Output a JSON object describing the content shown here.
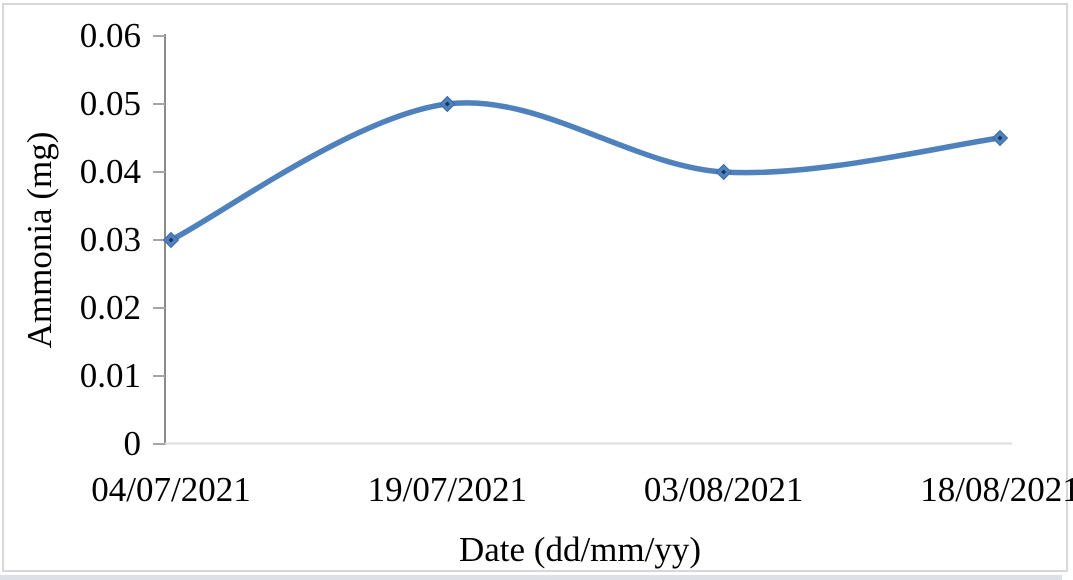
{
  "figure": {
    "background": "#ffffff",
    "border_color": "#d7d7d7"
  },
  "chart_data": {
    "type": "line",
    "categories": [
      "04/07/2021",
      "19/07/2021",
      "03/08/2021",
      "18/08/2021"
    ],
    "series": [
      {
        "name": "Ammonia",
        "values": [
          0.03,
          0.05,
          0.04,
          0.045
        ]
      }
    ],
    "title": "",
    "xlabel": "Date (dd/mm/yy)",
    "ylabel": "Ammonia (mg)",
    "ylim": [
      0,
      0.06
    ],
    "ytick_step": 0.01,
    "ytick_labels": [
      "0",
      "0.01",
      "0.02",
      "0.03",
      "0.04",
      "0.05",
      "0.06"
    ],
    "grid": "off",
    "legend": "none",
    "smooth_line": true,
    "line_color": "#4F81BD",
    "marker": "diamond",
    "marker_color": "#4F81BD",
    "marker_edge_color": "#3d6ba5",
    "marker_center_color": "#17375D",
    "y_axis_color": "#8c8c8c",
    "tick_color": "#a6a6a6",
    "x_axis_line_color": "#dcdcdc",
    "text_color": "#000000"
  }
}
